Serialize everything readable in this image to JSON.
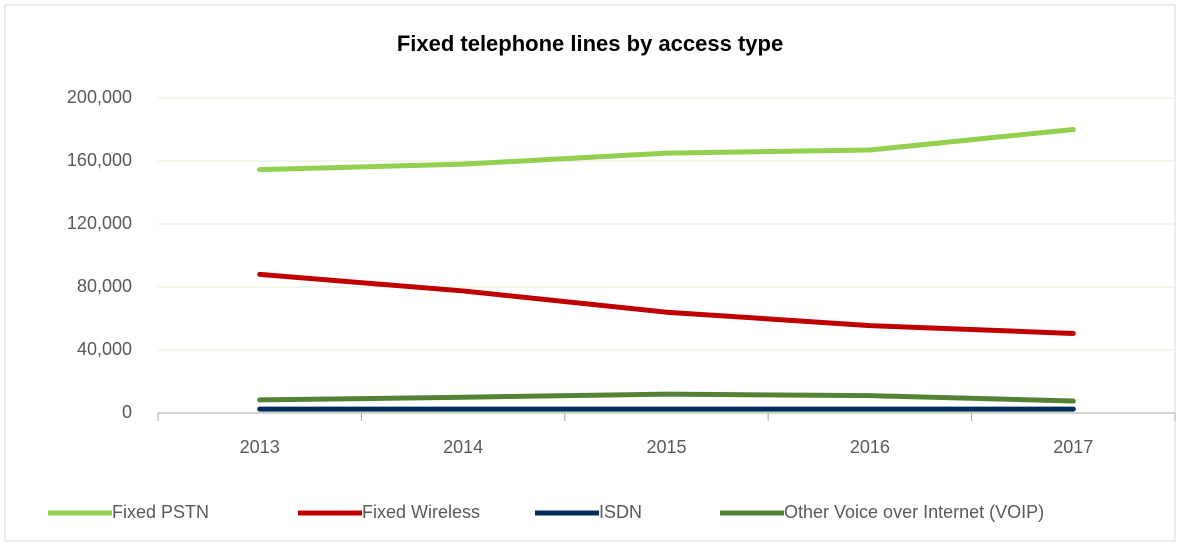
{
  "chart_data": {
    "type": "line",
    "title": "Fixed telephone lines by access type",
    "categories": [
      "2013",
      "2014",
      "2015",
      "2016",
      "2017"
    ],
    "series": [
      {
        "name": "Fixed PSTN",
        "color": "#92d050",
        "values": [
          154500,
          158000,
          165000,
          167000,
          180000
        ]
      },
      {
        "name": "Fixed Wireless",
        "color": "#c00000",
        "values": [
          88000,
          77500,
          64000,
          55500,
          50500
        ]
      },
      {
        "name": "ISDN",
        "color": "#002d5a",
        "values": [
          2500,
          2500,
          2500,
          2500,
          2500
        ]
      },
      {
        "name": "Other Voice over Internet (VOIP)",
        "color": "#548235",
        "values": [
          8300,
          10000,
          12000,
          11000,
          7600
        ]
      }
    ],
    "ylim": [
      0,
      200000
    ],
    "yticks": [
      0,
      {
        "value": 40000,
        "label": "40,000"
      },
      {
        "value": 80000,
        "label": "80,000"
      },
      {
        "value": 120000,
        "label": "120,000"
      },
      {
        "value": 160000,
        "label": "160,000"
      },
      {
        "value": 200000,
        "label": "200,000"
      }
    ],
    "grid": true,
    "legend": "bottom"
  }
}
